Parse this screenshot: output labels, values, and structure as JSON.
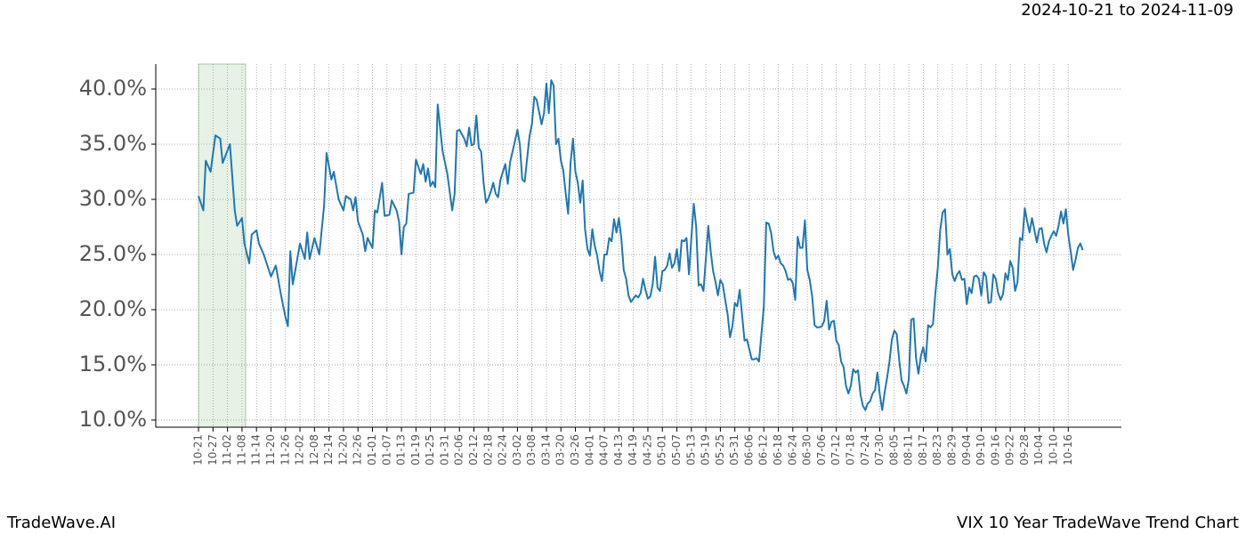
{
  "chart_data": {
    "type": "line",
    "date_range": "2024-10-21 to 2024-11-09",
    "brand": "TradeWave.AI",
    "caption": "VIX 10 Year TradeWave Trend Chart",
    "color": "#1f77b4",
    "highlight": {
      "start": 0,
      "end": 19.5,
      "color": "#e6f2e6"
    },
    "grid": true,
    "x": [
      0,
      2,
      3,
      5,
      7,
      9,
      10,
      13,
      15,
      16,
      18,
      19,
      21,
      22,
      24,
      25,
      27,
      30,
      32,
      34,
      36,
      37,
      38,
      39,
      40,
      42,
      44,
      45,
      46,
      48,
      50,
      52,
      53,
      55,
      56,
      58,
      60,
      61,
      63,
      64,
      65,
      66,
      68,
      69,
      70,
      72,
      73,
      74,
      76,
      77,
      79,
      80,
      82,
      83,
      84,
      85,
      86,
      87,
      89,
      90,
      92,
      93,
      94,
      95,
      96,
      97,
      98,
      99,
      101,
      103,
      105,
      106,
      107,
      108,
      110,
      111,
      112,
      113,
      114,
      115,
      116,
      117,
      118,
      119,
      120,
      121,
      122,
      123,
      124,
      125,
      127,
      128,
      129,
      131,
      132,
      133,
      134,
      135,
      137,
      138,
      139,
      140,
      142,
      143,
      144,
      145,
      146,
      147,
      148,
      149,
      150,
      151,
      152,
      153,
      154,
      155,
      156,
      157,
      158,
      159,
      160,
      161,
      162,
      163,
      164,
      165,
      166,
      167,
      168,
      169,
      170,
      171,
      172,
      173,
      174,
      175,
      176,
      177,
      178,
      179,
      180,
      181,
      182,
      183,
      184,
      185,
      186,
      187,
      188,
      189,
      190,
      191,
      192,
      193,
      194,
      195,
      196,
      197,
      198,
      199,
      200,
      201,
      202,
      203,
      204,
      205,
      206,
      207,
      208,
      209,
      210,
      211,
      212,
      213,
      214,
      215,
      216,
      217,
      218,
      219,
      220,
      221,
      222,
      223,
      224,
      225,
      226,
      227,
      228,
      229,
      230,
      231,
      232,
      233,
      234,
      235,
      236,
      237,
      238,
      239,
      240,
      241,
      242,
      243,
      244,
      245,
      246,
      247,
      248,
      249,
      250,
      251,
      252,
      253,
      254,
      255,
      256,
      257,
      258,
      259,
      260,
      261,
      262,
      263,
      264,
      265,
      266,
      267,
      268,
      269,
      270,
      271,
      272,
      273,
      274,
      275,
      276,
      277,
      278,
      279,
      280,
      281,
      282,
      283,
      284,
      285,
      286,
      287,
      288,
      289,
      290,
      291,
      292,
      293,
      294,
      295,
      296,
      297,
      298,
      299,
      300,
      301,
      302,
      303,
      304,
      305,
      306,
      307,
      308,
      309,
      310,
      311,
      312,
      313,
      314,
      315,
      316,
      317,
      318,
      319,
      320,
      321,
      322,
      323,
      324,
      325,
      326,
      327,
      328,
      329,
      330,
      331,
      332,
      333,
      334,
      335,
      336,
      337,
      338,
      339,
      340,
      341,
      342,
      343,
      344,
      345,
      346,
      347,
      348,
      349,
      350,
      351,
      352,
      353,
      354,
      355,
      356,
      357,
      358,
      359,
      360,
      361,
      362,
      363,
      364,
      365,
      366
    ],
    "values": [
      30.3,
      29.0,
      33.5,
      32.5,
      35.8,
      35.5,
      33.3,
      35.0,
      29.0,
      27.6,
      28.3,
      26.0,
      24.2,
      26.8,
      27.2,
      26.0,
      25.0,
      23.0,
      24.0,
      21.5,
      19.3,
      18.5,
      25.3,
      22.3,
      23.5,
      26.0,
      24.6,
      27.0,
      24.6,
      26.5,
      25.0,
      29.5,
      34.2,
      31.8,
      32.5,
      30.0,
      29.0,
      30.3,
      30.0,
      29.0,
      30.2,
      28.0,
      26.8,
      25.3,
      26.5,
      25.6,
      29.0,
      28.8,
      31.5,
      28.5,
      28.6,
      29.9,
      29.0,
      28.0,
      25.0,
      27.5,
      27.8,
      30.5,
      30.6,
      33.6,
      32.3,
      33.2,
      31.6,
      32.8,
      31.2,
      31.6,
      31.1,
      38.6,
      34.4,
      32.3,
      29.0,
      30.5,
      36.2,
      36.3,
      35.5,
      34.8,
      36.5,
      34.9,
      35.0,
      37.6,
      34.7,
      34.3,
      31.5,
      29.7,
      30.1,
      30.7,
      31.5,
      30.5,
      30.2,
      31.8,
      33.2,
      31.4,
      33.4,
      35.3,
      36.3,
      35.0,
      31.8,
      31.6,
      35.7,
      36.8,
      39.3,
      39.0,
      36.8,
      37.8,
      40.5,
      37.8,
      40.8,
      40.3,
      35.0,
      35.5,
      33.5,
      32.6,
      30.5,
      28.7,
      33.3,
      35.5,
      32.5,
      31.5,
      29.7,
      31.7,
      27.3,
      25.5,
      24.9,
      27.3,
      25.8,
      24.9,
      23.5,
      22.6,
      25.0,
      25.0,
      26.5,
      26.2,
      28.2,
      27.0,
      28.3,
      26.5,
      23.6,
      22.8,
      21.3,
      20.7,
      21.0,
      21.3,
      21.1,
      21.5,
      22.8,
      21.8,
      21.0,
      21.2,
      22.3,
      24.8,
      22.0,
      21.7,
      23.5,
      23.6,
      24.0,
      25.1,
      23.8,
      24.2,
      25.5,
      23.5,
      26.3,
      26.2,
      26.5,
      23.2,
      26.5,
      29.6,
      27.5,
      22.2,
      22.3,
      21.7,
      24.6,
      27.6,
      25.3,
      23.5,
      22.5,
      21.3,
      22.7,
      22.3,
      20.9,
      19.6,
      17.5,
      18.5,
      20.6,
      20.3,
      21.8,
      19.5,
      17.2,
      17.3,
      16.4,
      15.5,
      15.5,
      15.6,
      15.3,
      17.8,
      20.3,
      27.9,
      27.8,
      27.0,
      25.3,
      24.6,
      24.9,
      24.2,
      24.0,
      23.5,
      22.7,
      22.8,
      22.4,
      20.9,
      26.6,
      25.6,
      25.6,
      28.1,
      23.6,
      22.7,
      21.2,
      18.6,
      18.4,
      18.4,
      18.5,
      19.0,
      20.8,
      18.2,
      18.9,
      19.0,
      17.2,
      16.8,
      15.3,
      14.8,
      13.1,
      12.4,
      13.1,
      14.6,
      14.3,
      14.5,
      12.3,
      11.3,
      10.9,
      11.5,
      11.7,
      12.4,
      12.7,
      14.3,
      12.3,
      10.9,
      12.5,
      13.8,
      15.3,
      17.3,
      18.1,
      17.8,
      15.5,
      13.6,
      13.1,
      12.4,
      13.7,
      19.1,
      19.2,
      15.6,
      14.2,
      15.8,
      16.6,
      15.3,
      18.6,
      18.4,
      18.7,
      21.5,
      23.8,
      27.2,
      28.8,
      29.1,
      25.0,
      25.5,
      23.2,
      22.6,
      23.2,
      23.5,
      22.7,
      22.8,
      20.5,
      22.0,
      21.5,
      23.0,
      23.1,
      22.8,
      21.3,
      23.4,
      23.0,
      20.6,
      20.7,
      23.2,
      22.8,
      21.5,
      20.9,
      21.4,
      23.3,
      22.7,
      24.4,
      23.8,
      21.7,
      22.5,
      26.5,
      26.3,
      29.2,
      28.0,
      27.0,
      28.3,
      27.2,
      26.1,
      27.3,
      27.4,
      26.0,
      25.2,
      26.2,
      26.7,
      27.1,
      26.7,
      27.6,
      28.9,
      27.8,
      29.1,
      26.8,
      25.3,
      23.6,
      24.5,
      25.6,
      26.0,
      25.4
    ],
    "xlim": [
      -17.7,
      382
    ],
    "ylim": [
      9.35,
      42.26
    ],
    "yticks": [
      {
        "value": 10,
        "label": "10.0%"
      },
      {
        "value": 15,
        "label": "15.0%"
      },
      {
        "value": 20,
        "label": "20.0%"
      },
      {
        "value": 25,
        "label": "25.0%"
      },
      {
        "value": 30,
        "label": "30.0%"
      },
      {
        "value": 35,
        "label": "35.0%"
      },
      {
        "value": 40,
        "label": "40.0%"
      }
    ],
    "xticks": [
      {
        "value": 0,
        "label": "10-21"
      },
      {
        "value": 6,
        "label": "10-27"
      },
      {
        "value": 12,
        "label": "11-02"
      },
      {
        "value": 18,
        "label": "11-08"
      },
      {
        "value": 24,
        "label": "11-14"
      },
      {
        "value": 30,
        "label": "11-20"
      },
      {
        "value": 36,
        "label": "11-26"
      },
      {
        "value": 42,
        "label": "12-02"
      },
      {
        "value": 48,
        "label": "12-08"
      },
      {
        "value": 54,
        "label": "12-14"
      },
      {
        "value": 60,
        "label": "12-20"
      },
      {
        "value": 66,
        "label": "12-26"
      },
      {
        "value": 72,
        "label": "01-01"
      },
      {
        "value": 78,
        "label": "01-07"
      },
      {
        "value": 84,
        "label": "01-13"
      },
      {
        "value": 90,
        "label": "01-19"
      },
      {
        "value": 96,
        "label": "01-25"
      },
      {
        "value": 102,
        "label": "01-31"
      },
      {
        "value": 108,
        "label": "02-06"
      },
      {
        "value": 114,
        "label": "02-12"
      },
      {
        "value": 120,
        "label": "02-18"
      },
      {
        "value": 126,
        "label": "02-24"
      },
      {
        "value": 132,
        "label": "03-02"
      },
      {
        "value": 138,
        "label": "03-08"
      },
      {
        "value": 144,
        "label": "03-14"
      },
      {
        "value": 150,
        "label": "03-20"
      },
      {
        "value": 156,
        "label": "03-26"
      },
      {
        "value": 162,
        "label": "04-01"
      },
      {
        "value": 168,
        "label": "04-07"
      },
      {
        "value": 174,
        "label": "04-13"
      },
      {
        "value": 180,
        "label": "04-19"
      },
      {
        "value": 186,
        "label": "04-25"
      },
      {
        "value": 192,
        "label": "05-01"
      },
      {
        "value": 198,
        "label": "05-07"
      },
      {
        "value": 204,
        "label": "05-13"
      },
      {
        "value": 210,
        "label": "05-19"
      },
      {
        "value": 216,
        "label": "05-25"
      },
      {
        "value": 222,
        "label": "05-31"
      },
      {
        "value": 228,
        "label": "06-06"
      },
      {
        "value": 234,
        "label": "06-12"
      },
      {
        "value": 240,
        "label": "06-18"
      },
      {
        "value": 246,
        "label": "06-24"
      },
      {
        "value": 252,
        "label": "06-30"
      },
      {
        "value": 258,
        "label": "07-06"
      },
      {
        "value": 264,
        "label": "07-12"
      },
      {
        "value": 270,
        "label": "07-18"
      },
      {
        "value": 276,
        "label": "07-24"
      },
      {
        "value": 282,
        "label": "07-30"
      },
      {
        "value": 288,
        "label": "08-05"
      },
      {
        "value": 294,
        "label": "08-11"
      },
      {
        "value": 300,
        "label": "08-17"
      },
      {
        "value": 306,
        "label": "08-23"
      },
      {
        "value": 312,
        "label": "08-29"
      },
      {
        "value": 318,
        "label": "09-04"
      },
      {
        "value": 324,
        "label": "09-10"
      },
      {
        "value": 330,
        "label": "09-16"
      },
      {
        "value": 336,
        "label": "09-22"
      },
      {
        "value": 342,
        "label": "09-28"
      },
      {
        "value": 348,
        "label": "10-04"
      },
      {
        "value": 354,
        "label": "10-10"
      },
      {
        "value": 360,
        "label": "10-16"
      }
    ]
  }
}
